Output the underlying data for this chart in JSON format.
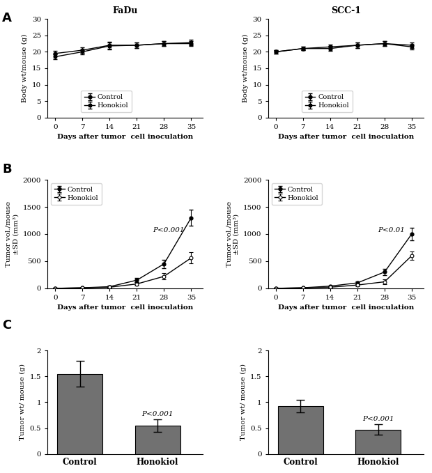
{
  "days": [
    0,
    7,
    14,
    21,
    28,
    35
  ],
  "panel_A": {
    "fadu": {
      "control_mean": [
        19.5,
        20.5,
        22.0,
        22.0,
        22.5,
        22.5
      ],
      "control_err": [
        0.8,
        0.8,
        1.0,
        0.8,
        0.8,
        0.8
      ],
      "honokiol_mean": [
        18.5,
        20.0,
        21.8,
        22.0,
        22.5,
        22.8
      ],
      "honokiol_err": [
        0.8,
        0.8,
        1.0,
        0.8,
        0.8,
        0.8
      ]
    },
    "scc1": {
      "control_mean": [
        20.0,
        21.0,
        21.5,
        22.0,
        22.5,
        22.0
      ],
      "control_err": [
        0.5,
        0.5,
        0.8,
        0.8,
        0.8,
        0.8
      ],
      "honokiol_mean": [
        20.0,
        21.0,
        21.0,
        22.0,
        22.5,
        21.5
      ],
      "honokiol_err": [
        0.5,
        0.5,
        0.8,
        0.8,
        0.8,
        0.8
      ]
    },
    "ylabel": "Body wt/mouse (g)",
    "ylim": [
      0,
      30
    ],
    "yticks": [
      0,
      5,
      10,
      15,
      20,
      25,
      30
    ]
  },
  "panel_B": {
    "fadu": {
      "control_mean": [
        0,
        10,
        30,
        150,
        450,
        1300
      ],
      "control_err": [
        5,
        5,
        15,
        40,
        80,
        150
      ],
      "honokiol_mean": [
        0,
        8,
        20,
        80,
        220,
        560
      ],
      "honokiol_err": [
        5,
        5,
        10,
        30,
        60,
        100
      ]
    },
    "scc1": {
      "control_mean": [
        0,
        10,
        40,
        100,
        300,
        1000
      ],
      "control_err": [
        5,
        5,
        15,
        30,
        60,
        120
      ],
      "honokiol_mean": [
        0,
        8,
        20,
        60,
        120,
        600
      ],
      "honokiol_err": [
        5,
        5,
        10,
        20,
        40,
        80
      ]
    },
    "ylabel": "Tumor vol./mouse\n±SD (mm³)",
    "ylim": [
      0,
      2000
    ],
    "yticks": [
      0,
      500,
      1000,
      1500,
      2000
    ],
    "pvalue_fadu": "P<0.001",
    "pvalue_scc1": "P<0.01"
  },
  "panel_C": {
    "fadu": {
      "control_mean": 1.55,
      "control_err": 0.25,
      "honokiol_mean": 0.55,
      "honokiol_err": 0.12,
      "pvalue": "P<0.001"
    },
    "scc1": {
      "control_mean": 0.93,
      "control_err": 0.12,
      "honokiol_mean": 0.47,
      "honokiol_err": 0.1,
      "pvalue": "P<0.001"
    },
    "ylabel": "Tumor wt/ mouse (g)",
    "ylim": [
      0,
      2
    ],
    "yticks": [
      0,
      0.5,
      1.0,
      1.5,
      2.0
    ],
    "ytick_labels": [
      "0",
      "0.5",
      "1",
      "1.5",
      "2"
    ],
    "bar_color": "#717171",
    "categories": [
      "Control",
      "Honokiol"
    ]
  },
  "fadu_title": "FaDu",
  "scc1_title": "SCC-1",
  "xlabel": "Days after tumor  cell inoculation"
}
